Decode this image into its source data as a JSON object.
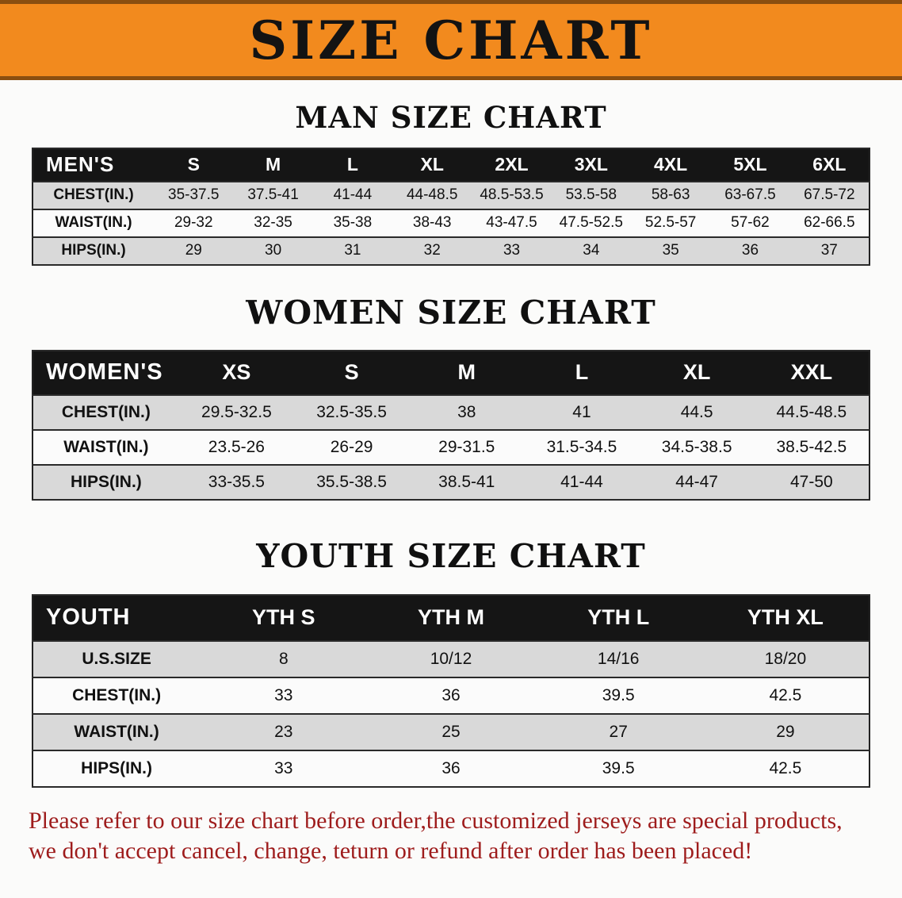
{
  "banner": {
    "title": "SIZE CHART",
    "bg_color": "#F28A1E",
    "text_color": "#131313"
  },
  "colors": {
    "table_header_bg": "#151515",
    "table_header_text": "#FFFFFF",
    "shaded_row_bg": "#D9D9D9",
    "disclaimer_text": "#9E1C1C"
  },
  "tables": {
    "men": {
      "section_title": "MAN SIZE CHART",
      "header": [
        "MEN'S",
        "S",
        "M",
        "L",
        "XL",
        "2XL",
        "3XL",
        "4XL",
        "5XL",
        "6XL"
      ],
      "rows": [
        {
          "label": "CHEST(IN.)",
          "values": [
            "35-37.5",
            "37.5-41",
            "41-44",
            "44-48.5",
            "48.5-53.5",
            "53.5-58",
            "58-63",
            "63-67.5",
            "67.5-72"
          ]
        },
        {
          "label": "WAIST(IN.)",
          "values": [
            "29-32",
            "32-35",
            "35-38",
            "38-43",
            "43-47.5",
            "47.5-52.5",
            "52.5-57",
            "57-62",
            "62-66.5"
          ]
        },
        {
          "label": "HIPS(IN.)",
          "values": [
            "29",
            "30",
            "31",
            "32",
            "33",
            "34",
            "35",
            "36",
            "37"
          ]
        }
      ]
    },
    "women": {
      "section_title": "WOMEN SIZE CHART",
      "header": [
        "WOMEN'S",
        "XS",
        "S",
        "M",
        "L",
        "XL",
        "XXL"
      ],
      "rows": [
        {
          "label": "CHEST(IN.)",
          "values": [
            "29.5-32.5",
            "32.5-35.5",
            "38",
            "41",
            "44.5",
            "44.5-48.5"
          ]
        },
        {
          "label": "WAIST(IN.)",
          "values": [
            "23.5-26",
            "26-29",
            "29-31.5",
            "31.5-34.5",
            "34.5-38.5",
            "38.5-42.5"
          ]
        },
        {
          "label": "HIPS(IN.)",
          "values": [
            "33-35.5",
            "35.5-38.5",
            "38.5-41",
            "41-44",
            "44-47",
            "47-50"
          ]
        }
      ]
    },
    "youth": {
      "section_title": "YOUTH SIZE CHART",
      "header": [
        "YOUTH",
        "YTH S",
        "YTH M",
        "YTH L",
        "YTH XL"
      ],
      "rows": [
        {
          "label": "U.S.SIZE",
          "values": [
            "8",
            "10/12",
            "14/16",
            "18/20"
          ]
        },
        {
          "label": "CHEST(IN.)",
          "values": [
            "33",
            "36",
            "39.5",
            "42.5"
          ]
        },
        {
          "label": "WAIST(IN.)",
          "values": [
            "23",
            "25",
            "27",
            "29"
          ]
        },
        {
          "label": "HIPS(IN.)",
          "values": [
            "33",
            "36",
            "39.5",
            "42.5"
          ]
        }
      ]
    }
  },
  "disclaimer": {
    "line1": "Please refer to our size chart before order,the customized jerseys are special products,",
    "line2": "we don't accept cancel, change, teturn or refund after order has been placed!"
  }
}
